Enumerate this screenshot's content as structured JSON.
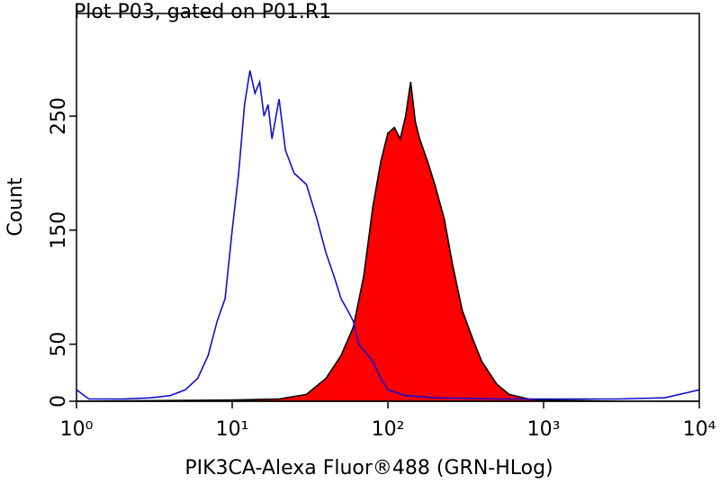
{
  "chart_data": {
    "type": "histogram",
    "title": "Plot P03, gated on P01.R1",
    "x_label": "PIK3CA-Alexa Fluor®488 (GRN-HLog)",
    "y_label": "Count",
    "log_x": true,
    "xlim": [
      1,
      10000
    ],
    "xticks": [
      {
        "value": 1,
        "label": "10⁰"
      },
      {
        "value": 10,
        "label": "10¹"
      },
      {
        "value": 100,
        "label": "10²"
      },
      {
        "value": 1000,
        "label": "10³"
      },
      {
        "value": 10000,
        "label": "10⁴"
      }
    ],
    "ylim": [
      0,
      340
    ],
    "yticks": [
      0,
      50,
      150,
      250
    ],
    "series": [
      {
        "color": "#ff0000",
        "filled": true,
        "x": [
          1,
          10,
          20,
          30,
          40,
          50,
          60,
          70,
          80,
          90,
          100,
          110,
          120,
          130,
          140,
          150,
          160,
          180,
          200,
          230,
          260,
          300,
          350,
          400,
          500,
          600,
          800,
          1000,
          3000,
          10000
        ],
        "values": [
          0,
          1,
          2,
          6,
          20,
          40,
          65,
          110,
          170,
          210,
          235,
          240,
          230,
          250,
          280,
          245,
          230,
          210,
          190,
          160,
          120,
          80,
          55,
          35,
          15,
          6,
          2,
          1,
          0,
          0
        ]
      },
      {
        "color": "#1010d0",
        "filled": false,
        "x": [
          1,
          1.2,
          2,
          3,
          4,
          5,
          6,
          7,
          8,
          9,
          10,
          11,
          12,
          13,
          14,
          15,
          16,
          17,
          18,
          20,
          22,
          25,
          30,
          35,
          40,
          45,
          50,
          55,
          60,
          65,
          70,
          80,
          90,
          100,
          130,
          200,
          500,
          1000,
          3000,
          6000,
          10000
        ],
        "values": [
          10,
          2,
          2,
          3,
          5,
          10,
          20,
          40,
          70,
          90,
          150,
          200,
          260,
          290,
          270,
          280,
          250,
          260,
          230,
          265,
          220,
          200,
          190,
          160,
          130,
          110,
          90,
          80,
          70,
          50,
          45,
          35,
          20,
          10,
          5,
          3,
          2,
          2,
          2,
          3,
          10
        ]
      }
    ]
  }
}
